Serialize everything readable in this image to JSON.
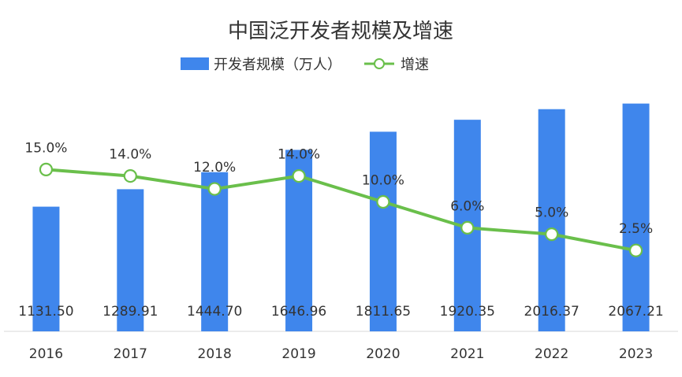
{
  "chart_data": {
    "type": "bar+line",
    "title": "中国泛开发者规模及增速",
    "categories": [
      "2016",
      "2017",
      "2018",
      "2019",
      "2020",
      "2021",
      "2022",
      "2023"
    ],
    "series": [
      {
        "name": "开发者规模（万人）",
        "type": "bar",
        "axis": "left",
        "values": [
          1131.5,
          1289.91,
          1444.7,
          1646.96,
          1811.65,
          1920.35,
          2016.37,
          2067.21
        ],
        "labels": [
          "1131.50",
          "1289.91",
          "1444.70",
          "1646.96",
          "1811.65",
          "1920.35",
          "2016.37",
          "2067.21"
        ]
      },
      {
        "name": "增速",
        "type": "line",
        "axis": "right",
        "values": [
          15.0,
          14.0,
          12.0,
          14.0,
          10.0,
          6.0,
          5.0,
          2.5
        ],
        "labels": [
          "15.0%",
          "14.0%",
          "12.0%",
          "14.0%",
          "10.0%",
          "6.0%",
          "5.0%",
          "2.5%"
        ]
      }
    ],
    "ylim_left": [
      0,
      2350
    ],
    "ylim_right": [
      -10,
      30
    ],
    "legend_position": "top-center",
    "grid": false,
    "colors": {
      "bar": "#3f86ec",
      "line": "#6abf4b",
      "axis": "#d9d9d9"
    }
  }
}
